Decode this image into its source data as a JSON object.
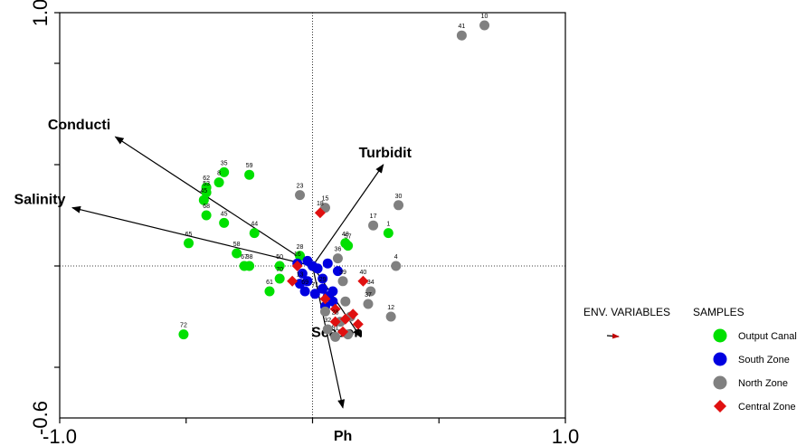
{
  "chart_data": {
    "type": "scatter",
    "title": "",
    "xlabel": "",
    "ylabel": "",
    "xlim": [
      -1.0,
      1.0
    ],
    "ylim": [
      -0.6,
      1.0
    ],
    "x_tick_labels": [
      "-1.0",
      "1.0"
    ],
    "y_tick_labels": [
      "1.0",
      "-0.6"
    ],
    "grid": false,
    "legend": {
      "position": "right",
      "env_header": "ENV. VARIABLES",
      "samples_header": "SAMPLES",
      "entries": [
        "Output Canal",
        "South Zone",
        "North Zone",
        "Central Zone"
      ]
    },
    "env_vectors": [
      {
        "name": "Conducti",
        "x": -0.78,
        "y": 0.51
      },
      {
        "name": "Salinity",
        "x": -0.95,
        "y": 0.23
      },
      {
        "name": "Turbidit",
        "x": 0.28,
        "y": 0.4
      },
      {
        "name": "Season",
        "x": 0.19,
        "y": -0.28
      },
      {
        "name": "Ph",
        "x": 0.12,
        "y": -0.56
      }
    ],
    "series": [
      {
        "name": "Output Canal",
        "color": "#00e000",
        "shape": "circle",
        "points": [
          {
            "label": "35",
            "x": -0.35,
            "y": 0.37
          },
          {
            "label": "59",
            "x": -0.25,
            "y": 0.36
          },
          {
            "label": "8",
            "x": -0.37,
            "y": 0.33
          },
          {
            "label": "62",
            "x": -0.42,
            "y": 0.31
          },
          {
            "label": "53",
            "x": -0.42,
            "y": 0.29
          },
          {
            "label": "45",
            "x": -0.43,
            "y": 0.26
          },
          {
            "label": "68",
            "x": -0.42,
            "y": 0.2
          },
          {
            "label": "45",
            "x": -0.35,
            "y": 0.17
          },
          {
            "label": "44",
            "x": -0.23,
            "y": 0.13
          },
          {
            "label": "65",
            "x": -0.49,
            "y": 0.09
          },
          {
            "label": "58",
            "x": -0.3,
            "y": 0.05
          },
          {
            "label": "38",
            "x": -0.25,
            "y": 0.0
          },
          {
            "label": "67",
            "x": -0.27,
            "y": 0.0
          },
          {
            "label": "50",
            "x": -0.13,
            "y": 0.0
          },
          {
            "label": "28",
            "x": -0.05,
            "y": 0.04
          },
          {
            "label": "70",
            "x": -0.13,
            "y": -0.05
          },
          {
            "label": "61",
            "x": -0.17,
            "y": -0.1
          },
          {
            "label": "57",
            "x": 0.14,
            "y": 0.08
          },
          {
            "label": "48",
            "x": 0.13,
            "y": 0.09
          },
          {
            "label": "1",
            "x": 0.3,
            "y": 0.13
          },
          {
            "label": "72",
            "x": -0.51,
            "y": -0.27
          }
        ]
      },
      {
        "name": "South Zone",
        "color": "#0000e0",
        "shape": "circle",
        "points": [
          {
            "label": "16",
            "x": -0.06,
            "y": 0.01
          },
          {
            "label": "",
            "x": -0.02,
            "y": 0.02
          },
          {
            "label": "",
            "x": 0.0,
            "y": 0.0
          },
          {
            "label": "",
            "x": 0.02,
            "y": -0.01
          },
          {
            "label": "",
            "x": -0.04,
            "y": -0.03
          },
          {
            "label": "",
            "x": -0.02,
            "y": -0.06
          },
          {
            "label": "13",
            "x": -0.05,
            "y": -0.07
          },
          {
            "label": "",
            "x": 0.04,
            "y": -0.05
          },
          {
            "label": "69",
            "x": -0.03,
            "y": -0.1
          },
          {
            "label": "71",
            "x": 0.01,
            "y": -0.11
          },
          {
            "label": "29",
            "x": 0.04,
            "y": -0.09
          },
          {
            "label": "",
            "x": 0.06,
            "y": -0.12
          },
          {
            "label": "",
            "x": 0.05,
            "y": -0.16
          },
          {
            "label": "",
            "x": 0.08,
            "y": -0.14
          },
          {
            "label": "",
            "x": 0.1,
            "y": -0.02
          },
          {
            "label": "",
            "x": 0.06,
            "y": 0.01
          },
          {
            "label": "",
            "x": 0.08,
            "y": -0.1
          }
        ]
      },
      {
        "name": "North Zone",
        "color": "#808080",
        "shape": "circle",
        "points": [
          {
            "label": "10",
            "x": 0.68,
            "y": 0.95
          },
          {
            "label": "41",
            "x": 0.59,
            "y": 0.91
          },
          {
            "label": "23",
            "x": -0.05,
            "y": 0.28
          },
          {
            "label": "15",
            "x": 0.05,
            "y": 0.23
          },
          {
            "label": "30",
            "x": 0.34,
            "y": 0.24
          },
          {
            "label": "17",
            "x": 0.24,
            "y": 0.16
          },
          {
            "label": "4",
            "x": 0.33,
            "y": 0.0
          },
          {
            "label": "36",
            "x": 0.1,
            "y": 0.03
          },
          {
            "label": "39",
            "x": 0.12,
            "y": -0.06
          },
          {
            "label": "34",
            "x": 0.23,
            "y": -0.1
          },
          {
            "label": "37",
            "x": 0.22,
            "y": -0.15
          },
          {
            "label": "12",
            "x": 0.31,
            "y": -0.2
          },
          {
            "label": "",
            "x": 0.05,
            "y": -0.18
          },
          {
            "label": "32",
            "x": 0.06,
            "y": -0.25
          },
          {
            "label": "",
            "x": 0.11,
            "y": -0.22
          },
          {
            "label": "",
            "x": 0.15,
            "y": -0.2
          },
          {
            "label": "",
            "x": 0.13,
            "y": -0.14
          },
          {
            "label": "51",
            "x": 0.09,
            "y": -0.28
          },
          {
            "label": "",
            "x": 0.14,
            "y": -0.27
          }
        ]
      },
      {
        "name": "Central Zone",
        "color": "#e01010",
        "shape": "diamond",
        "points": [
          {
            "label": "18",
            "x": 0.03,
            "y": 0.21
          },
          {
            "label": "",
            "x": -0.06,
            "y": 0.0
          },
          {
            "label": "",
            "x": -0.08,
            "y": -0.06
          },
          {
            "label": "40",
            "x": 0.2,
            "y": -0.06
          },
          {
            "label": "",
            "x": 0.05,
            "y": -0.13
          },
          {
            "label": "",
            "x": 0.09,
            "y": -0.17
          },
          {
            "label": "28",
            "x": 0.09,
            "y": -0.22
          },
          {
            "label": "",
            "x": 0.13,
            "y": -0.21
          },
          {
            "label": "",
            "x": 0.16,
            "y": -0.19
          },
          {
            "label": "",
            "x": 0.18,
            "y": -0.23
          },
          {
            "label": "",
            "x": 0.12,
            "y": -0.26
          }
        ]
      }
    ]
  }
}
